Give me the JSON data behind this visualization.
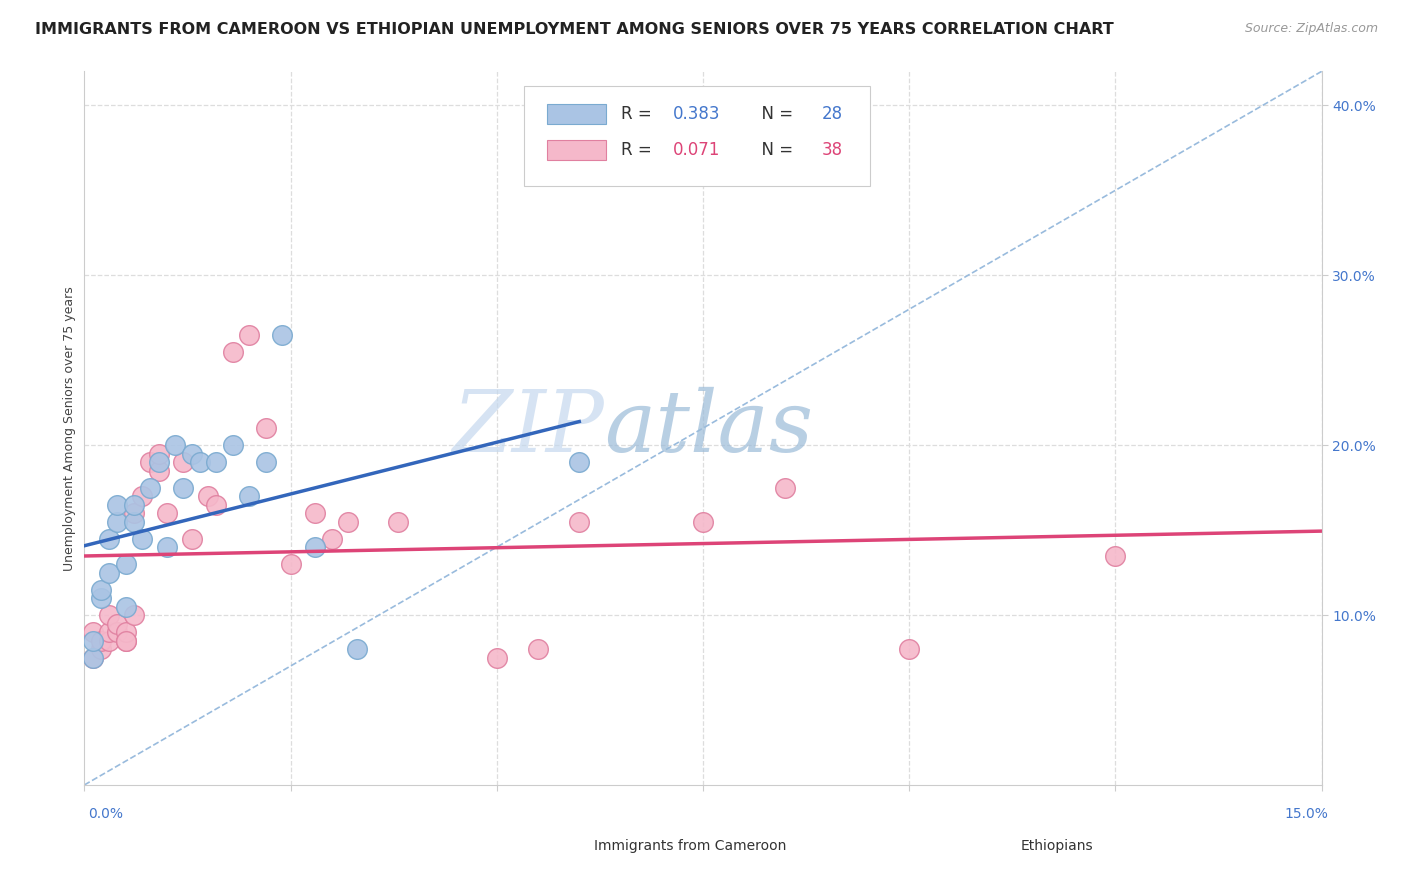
{
  "title": "IMMIGRANTS FROM CAMEROON VS ETHIOPIAN UNEMPLOYMENT AMONG SENIORS OVER 75 YEARS CORRELATION CHART",
  "source": "Source: ZipAtlas.com",
  "ylabel": "Unemployment Among Seniors over 75 years",
  "xlim": [
    0,
    0.15
  ],
  "ylim": [
    0,
    0.42
  ],
  "right_yticks": [
    0.1,
    0.2,
    0.3,
    0.4
  ],
  "right_yticklabels": [
    "10.0%",
    "20.0%",
    "30.0%",
    "40.0%"
  ],
  "cameroon_R": 0.383,
  "cameroon_N": 28,
  "ethiopian_R": 0.071,
  "ethiopian_N": 38,
  "cameroon_color": "#aac4e4",
  "cameroon_edge": "#7aaad0",
  "ethiopian_color": "#f5b8ca",
  "ethiopian_edge": "#e080a0",
  "trendline_cameroon_color": "#3366bb",
  "trendline_ethiopian_color": "#dd4477",
  "refline_color": "#99bbdd",
  "watermark_zip": "ZIP",
  "watermark_atlas": "atlas",
  "background_color": "#ffffff",
  "grid_color": "#dddddd",
  "xtick_positions": [
    0.0,
    0.025,
    0.05,
    0.075,
    0.1,
    0.125,
    0.15
  ],
  "cameroon_x": [
    0.001,
    0.001,
    0.002,
    0.002,
    0.003,
    0.003,
    0.004,
    0.004,
    0.005,
    0.005,
    0.006,
    0.006,
    0.007,
    0.008,
    0.009,
    0.01,
    0.011,
    0.012,
    0.013,
    0.014,
    0.016,
    0.018,
    0.02,
    0.022,
    0.024,
    0.028,
    0.033,
    0.06
  ],
  "cameroon_y": [
    0.075,
    0.085,
    0.11,
    0.115,
    0.125,
    0.145,
    0.155,
    0.165,
    0.105,
    0.13,
    0.155,
    0.165,
    0.145,
    0.175,
    0.19,
    0.14,
    0.2,
    0.175,
    0.195,
    0.19,
    0.19,
    0.2,
    0.17,
    0.19,
    0.265,
    0.14,
    0.08,
    0.19
  ],
  "ethiopian_x": [
    0.001,
    0.001,
    0.002,
    0.002,
    0.003,
    0.003,
    0.003,
    0.004,
    0.004,
    0.005,
    0.005,
    0.005,
    0.006,
    0.006,
    0.007,
    0.008,
    0.009,
    0.009,
    0.01,
    0.012,
    0.013,
    0.015,
    0.016,
    0.018,
    0.02,
    0.022,
    0.025,
    0.028,
    0.03,
    0.032,
    0.038,
    0.05,
    0.055,
    0.06,
    0.075,
    0.085,
    0.1,
    0.125
  ],
  "ethiopian_y": [
    0.075,
    0.09,
    0.08,
    0.085,
    0.085,
    0.09,
    0.1,
    0.09,
    0.095,
    0.085,
    0.09,
    0.085,
    0.1,
    0.16,
    0.17,
    0.19,
    0.185,
    0.195,
    0.16,
    0.19,
    0.145,
    0.17,
    0.165,
    0.255,
    0.265,
    0.21,
    0.13,
    0.16,
    0.145,
    0.155,
    0.155,
    0.075,
    0.08,
    0.155,
    0.155,
    0.175,
    0.08,
    0.135
  ],
  "title_fontsize": 11.5,
  "axis_label_fontsize": 9,
  "tick_fontsize": 10
}
